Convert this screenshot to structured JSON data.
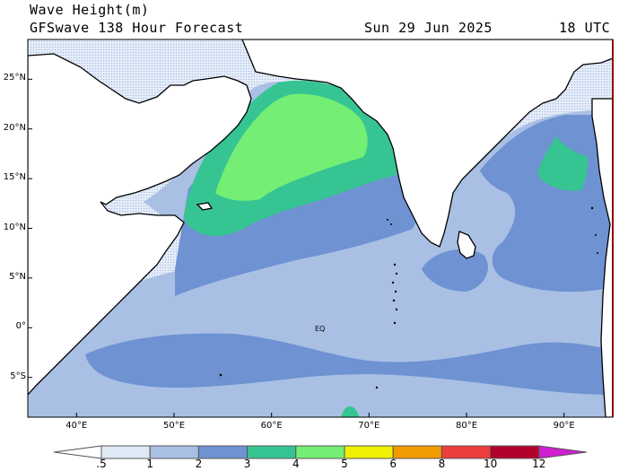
{
  "header": {
    "title": "Wave Height(m)",
    "subtitle": "GFSwave 138 Hour Forecast",
    "date": "Sun 29 Jun 2025",
    "time": "18 UTC"
  },
  "map": {
    "region": "Indian Ocean",
    "lon_range": [
      35,
      95
    ],
    "lat_range": [
      -9,
      29
    ],
    "lat_labels": [
      "25°N",
      "20°N",
      "15°N",
      "10°N",
      "5°N",
      "0°",
      "5°S"
    ],
    "lat_values": [
      25,
      20,
      15,
      10,
      5,
      0,
      -5
    ],
    "lon_labels": [
      "40°E",
      "50°E",
      "60°E",
      "70°E",
      "80°E",
      "90°E"
    ],
    "lon_values": [
      40,
      50,
      60,
      70,
      80,
      90
    ],
    "equator_label": "EQ",
    "land_color": "#ffffff",
    "coast_color": "#000000"
  },
  "legend": {
    "labels": [
      ".5",
      "1",
      "2",
      "3",
      "4",
      "5",
      "6",
      "8",
      "10",
      "12"
    ],
    "colors": [
      "#ffffff",
      "#dfe9f6",
      "#a9c0e4",
      "#6e92d2",
      "#36c592",
      "#74ee74",
      "#f0f000",
      "#f29b00",
      "#ee3d3d",
      "#b3002a",
      "#cf1fd0"
    ]
  }
}
